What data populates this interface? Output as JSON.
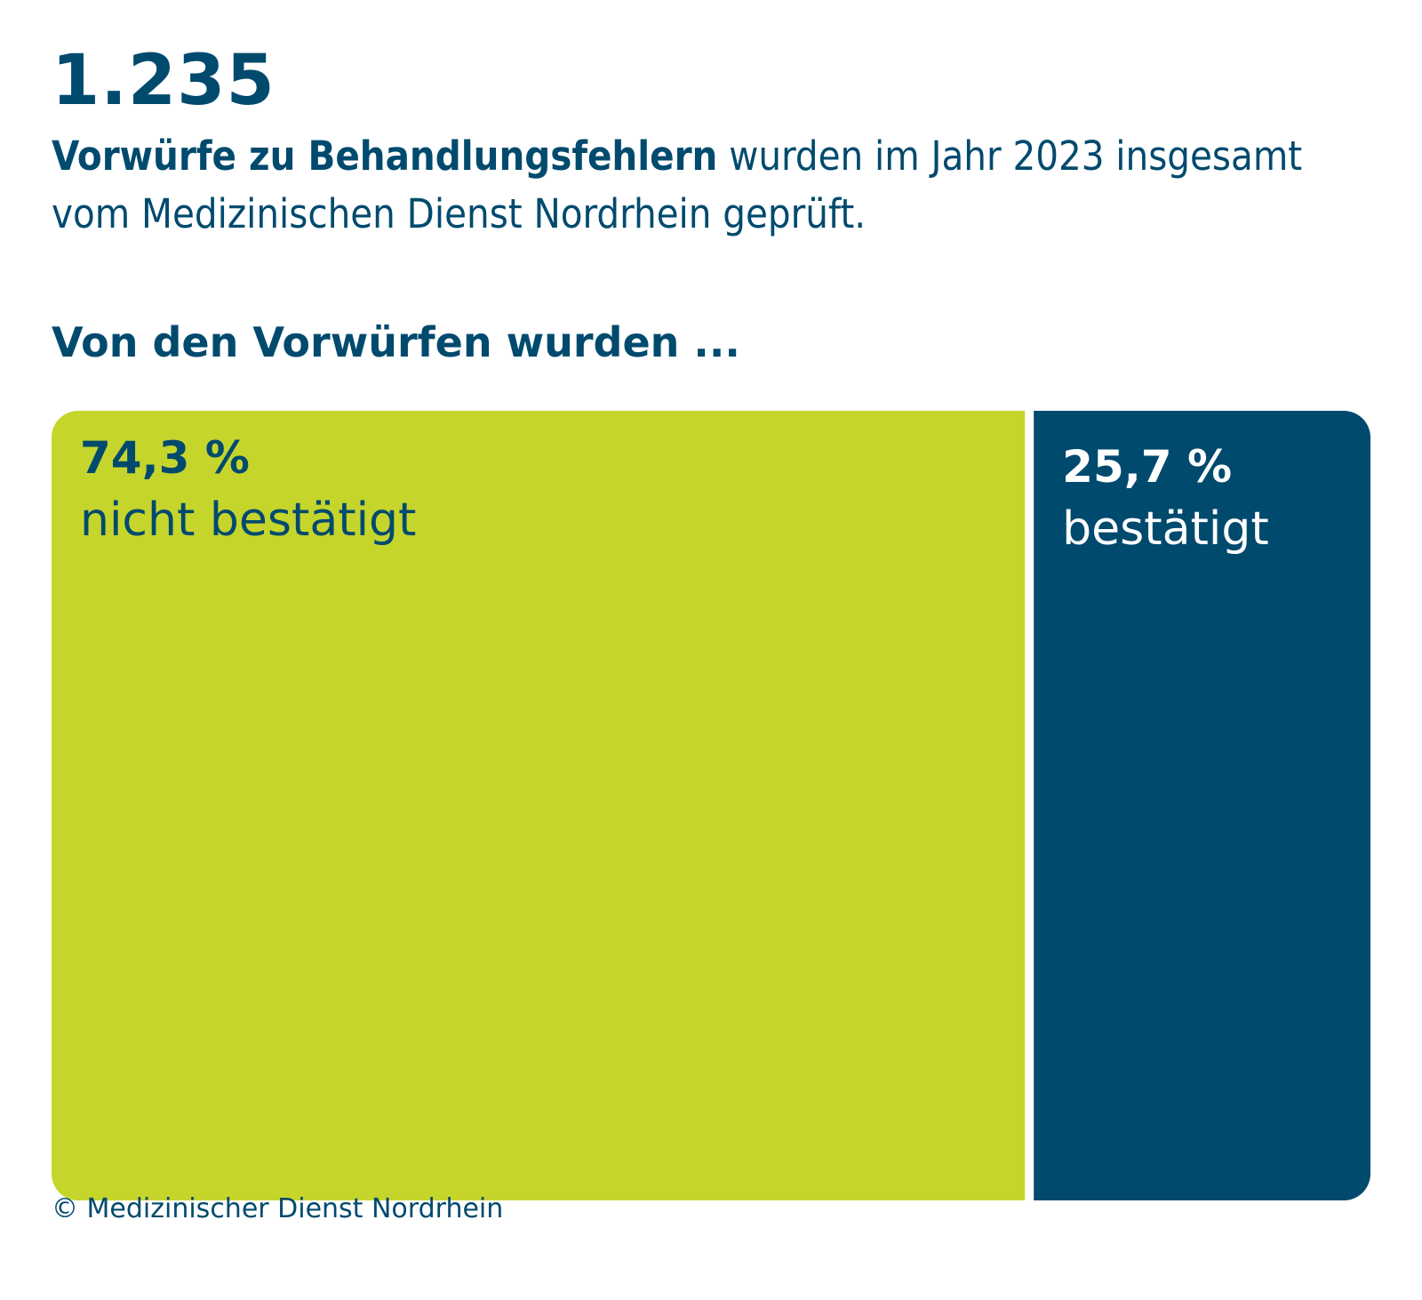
{
  "headline": {
    "number": "1.235",
    "text_bold": "Vorwürfe zu Behandlungsfehlern",
    "text_rest": " wurden im Jahr 2023 insgesamt vom Medizinischen Dienst Nordrhein geprüft."
  },
  "section_heading": "Von den Vorwürfen wurden ...",
  "chart_data": {
    "type": "bar",
    "orientation": "horizontal-stacked-100",
    "categories": [
      "nicht bestätigt",
      "bestätigt"
    ],
    "values": [
      74.3,
      25.7
    ],
    "value_labels": [
      "74,3 %",
      "25,7 %"
    ],
    "unit": "%",
    "colors": [
      "#c6d52c",
      "#004a6e"
    ],
    "label_colors": [
      "#004a6e",
      "#ffffff"
    ],
    "legend": "none",
    "grid": false
  },
  "source": "© Medizinischer Dienst Nordrhein"
}
